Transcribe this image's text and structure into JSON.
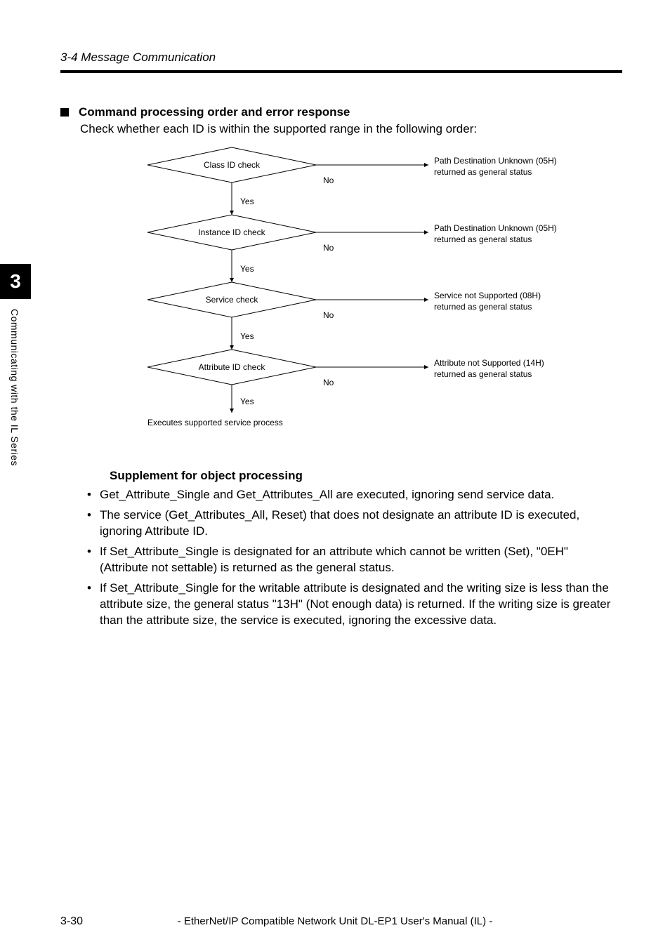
{
  "header": {
    "section": "3-4 Message Communication"
  },
  "subhead": {
    "title": "Command processing order and error response",
    "intro": "Check whether each ID is within the supported range in the following order:"
  },
  "side": {
    "chapter": "3",
    "label": "Communicating with the IL Series"
  },
  "flow": {
    "diamond_fill": "#ffffff",
    "stroke": "#000000",
    "font_size": 12,
    "diamond_w": 240,
    "diamond_h": 50,
    "v_gap": 96,
    "arrow_len": 160,
    "steps": [
      {
        "label": "Class ID check",
        "result1": "Path Destination Unknown (05H)",
        "result2": "returned as general status"
      },
      {
        "label": "Instance ID check",
        "result1": "Path Destination Unknown (05H)",
        "result2": "returned as general status"
      },
      {
        "label": "Service check",
        "result1": "Service not Supported (08H)",
        "result2": "returned as general status"
      },
      {
        "label": "Attribute ID check",
        "result1": "Attribute not Supported (14H)",
        "result2": "returned as general status"
      }
    ],
    "yes": "Yes",
    "no": "No",
    "final": "Executes supported service process"
  },
  "supp": {
    "title": "Supplement for object processing",
    "items": [
      "Get_Attribute_Single and Get_Attributes_All are executed, ignoring send service data.",
      "The service (Get_Attributes_All, Reset) that does not designate an attribute ID is executed, ignoring Attribute ID.",
      "If Set_Attribute_Single is designated for an attribute which cannot be written (Set), \"0EH\" (Attribute not settable) is returned as the general status.",
      "If Set_Attribute_Single for the writable attribute is designated and the writing size is less than the attribute size, the general status \"13H\" (Not enough data) is returned. If the writing size is greater than the attribute size, the service is executed, ignoring the excessive data."
    ]
  },
  "footer": {
    "page": "3-30",
    "title": "- EtherNet/IP Compatible Network Unit DL-EP1 User's Manual (IL) -"
  }
}
